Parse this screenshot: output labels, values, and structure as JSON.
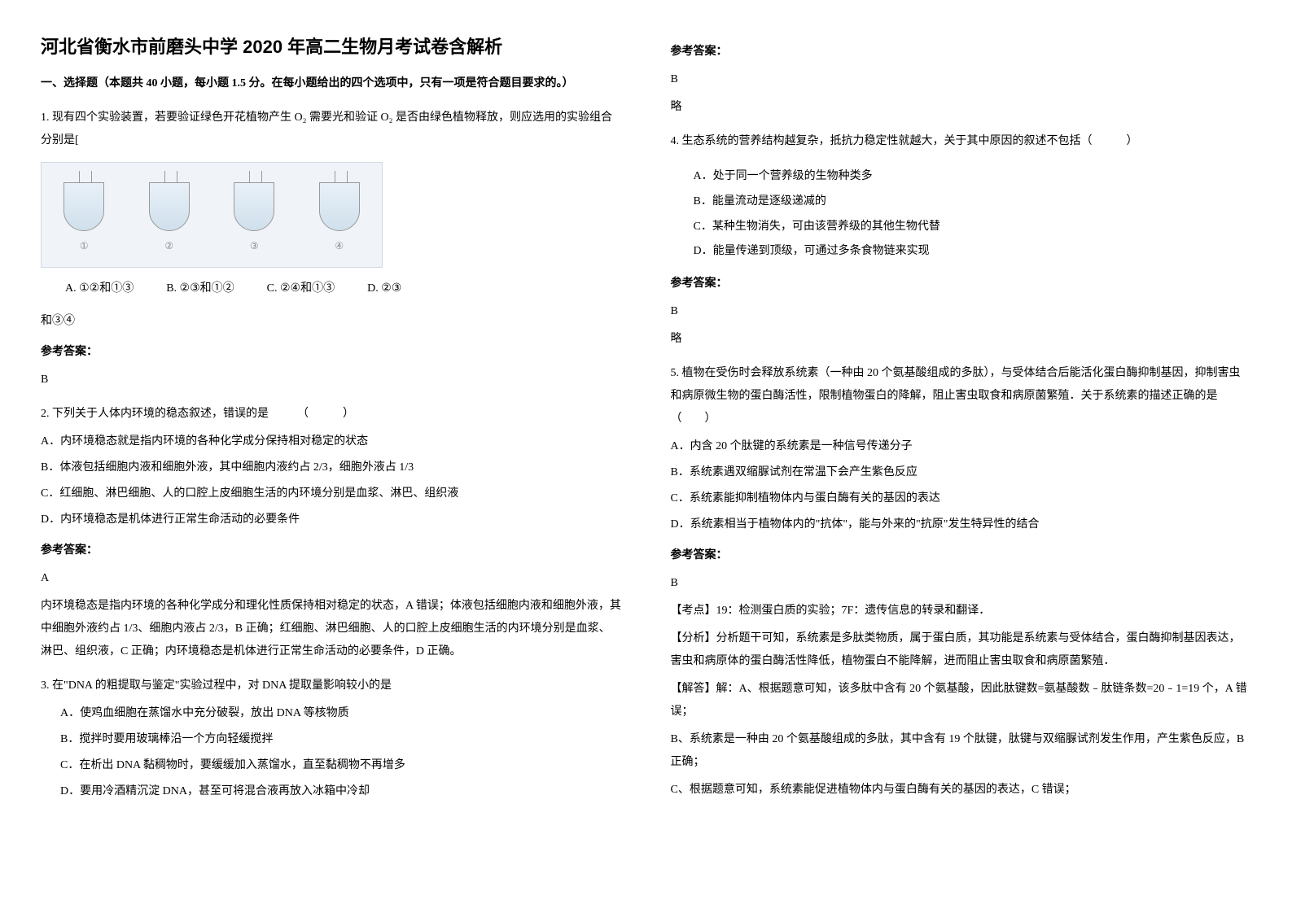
{
  "title": "河北省衡水市前磨头中学 2020 年高二生物月考试卷含解析",
  "section1_header": "一、选择题（本题共 40 小题，每小题 1.5 分。在每小题给出的四个选项中，只有一项是符合题目要求的。）",
  "q1": {
    "text": "1. 现有四个实验装置，若要验证绿色开花植物产生 O₂ 需要光和验证 O₂ 是否由绿色植物释放，则应选用的实验组合分别是[",
    "figure_labels": [
      "①",
      "②",
      "③",
      "④"
    ],
    "options": {
      "a": "A. ①②和①③",
      "b": "B. ②③和①②",
      "c": "C. ②④和①③",
      "d": "D. ②③"
    },
    "options_suffix": "和③④",
    "answer_label": "参考答案：",
    "answer": "B"
  },
  "q2": {
    "text": "2. 下列关于人体内环境的稳态叙述，错误的是　　　（　　　）",
    "options": {
      "a": "A．内环境稳态就是指内环境的各种化学成分保持相对稳定的状态",
      "b": "B．体液包括细胞内液和细胞外液，其中细胞内液约占 2/3，细胞外液占 1/3",
      "c": "C．红细胞、淋巴细胞、人的口腔上皮细胞生活的内环境分别是血浆、淋巴、组织液",
      "d": "D．内环境稳态是机体进行正常生命活动的必要条件"
    },
    "answer_label": "参考答案：",
    "answer": "A",
    "explanation": "内环境稳态是指内环境的各种化学成分和理化性质保持相对稳定的状态，A 错误；体液包括细胞内液和细胞外液，其中细胞外液约占 1/3、细胞内液占 2/3，B 正确；红细胞、淋巴细胞、人的口腔上皮细胞生活的内环境分别是血浆、淋巴、组织液，C 正确；内环境稳态是机体进行正常生命活动的必要条件，D 正确。"
  },
  "q3": {
    "text": "3. 在\"DNA 的粗提取与鉴定\"实验过程中，对 DNA 提取量影响较小的是",
    "options": {
      "a": "A．使鸡血细胞在蒸馏水中充分破裂，放出 DNA 等核物质",
      "b": "B．搅拌时要用玻璃棒沿一个方向轻缓搅拌",
      "c": "C．在析出 DNA 黏稠物时，要缓缓加入蒸馏水，直至黏稠物不再增多",
      "d": "D．要用冷酒精沉淀 DNA，甚至可将混合液再放入冰箱中冷却"
    },
    "answer_label": "参考答案：",
    "answer": "B",
    "answer_note": "略"
  },
  "q4": {
    "text": "4. 生态系统的营养结构越复杂，抵抗力稳定性就越大，关于其中原因的叙述不包括（　　　）",
    "options": {
      "a": "A．处于同一个营养级的生物种类多",
      "b": "B．能量流动是逐级递减的",
      "c": "C．某种生物消失，可由该营养级的其他生物代替",
      "d": "D．能量传递到顶级，可通过多条食物链来实现"
    },
    "answer_label": "参考答案：",
    "answer": "B",
    "answer_note": "略"
  },
  "q5": {
    "text": "5. 植物在受伤时会释放系统素（一种由 20 个氨基酸组成的多肽），与受体结合后能活化蛋白酶抑制基因，抑制害虫和病原微生物的蛋白酶活性，限制植物蛋白的降解，阻止害虫取食和病原菌繁殖．关于系统素的描述正确的是（　　）",
    "options": {
      "a": "A．内含 20 个肽键的系统素是一种信号传递分子",
      "b": "B．系统素遇双缩脲试剂在常温下会产生紫色反应",
      "c": "C．系统素能抑制植物体内与蛋白酶有关的基因的表达",
      "d": "D．系统素相当于植物体内的\"抗体\"，能与外来的\"抗原\"发生特异性的结合"
    },
    "answer_label": "参考答案：",
    "answer": "B",
    "kaodian": "【考点】19：检测蛋白质的实验；7F：遗传信息的转录和翻译．",
    "fenxi": "【分析】分析题干可知，系统素是多肽类物质，属于蛋白质，其功能是系统素与受体结合，蛋白酶抑制基因表达，害虫和病原体的蛋白酶活性降低，植物蛋白不能降解，进而阻止害虫取食和病原菌繁殖．",
    "jieda_prefix": "【解答】解：A、根据题意可知，该多肽中含有 20 个氨基酸，因此肽键数=氨基酸数﹣肽链条数=20﹣1=19 个，A 错误；",
    "jieda_b": "B、系统素是一种由 20 个氨基酸组成的多肽，其中含有 19 个肽键，肽键与双缩脲试剂发生作用，产生紫色反应，B 正确；",
    "jieda_c": "C、根据题意可知，系统素能促进植物体内与蛋白酶有关的基因的表达，C 错误；"
  }
}
